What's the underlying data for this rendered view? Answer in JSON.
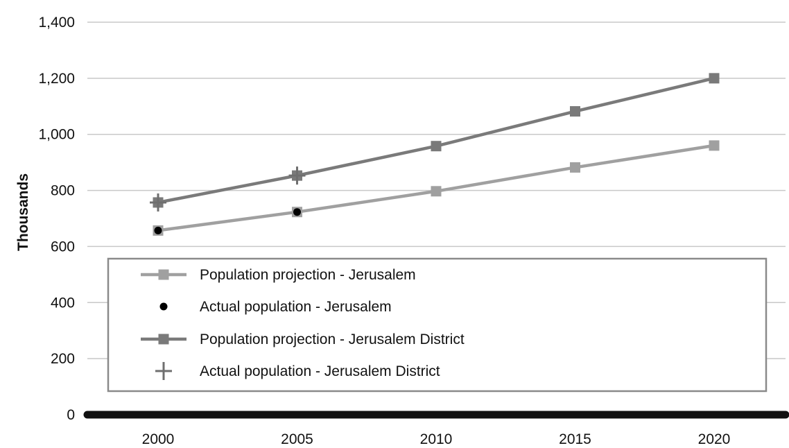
{
  "chart_data": {
    "type": "line",
    "ylabel": "Thousands",
    "ylim": [
      0,
      1400
    ],
    "yticks": [
      0,
      200,
      400,
      600,
      800,
      1000,
      1200,
      1400
    ],
    "ytick_labels": [
      "0",
      "200",
      "400",
      "600",
      "800",
      "1,000",
      "1,200",
      "1,400"
    ],
    "x": [
      2000,
      2005,
      2010,
      2015,
      2020
    ],
    "xtick_labels": [
      "2000",
      "2005",
      "2010",
      "2015",
      "2020"
    ],
    "grid": true,
    "legend_position": "inside, lower-center",
    "series": [
      {
        "name": "Population projection - Jerusalem",
        "style": "line-square",
        "color": "#a0a0a0",
        "x": [
          2000,
          2005,
          2010,
          2015,
          2020
        ],
        "values": [
          657,
          723,
          797,
          882,
          960
        ]
      },
      {
        "name": "Actual population - Jerusalem",
        "style": "dot",
        "color": "#000000",
        "x": [
          2000,
          2005
        ],
        "values": [
          657,
          723
        ]
      },
      {
        "name": "Population projection - Jerusalem District",
        "style": "line-square",
        "color": "#7a7a7a",
        "x": [
          2000,
          2005,
          2010,
          2015,
          2020
        ],
        "values": [
          757,
          853,
          958,
          1082,
          1200
        ]
      },
      {
        "name": "Actual population - Jerusalem District",
        "style": "plus",
        "color": "#6f6f6f",
        "x": [
          2000,
          2005
        ],
        "values": [
          757,
          853
        ]
      }
    ]
  }
}
